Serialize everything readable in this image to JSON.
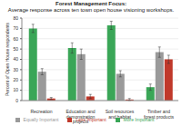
{
  "chart_data": {
    "type": "bar",
    "title": "Forest Management Focus:",
    "subtitle": "Average response across ten town open house visioning workshops.",
    "y_label": "Percent of Open House respondents",
    "categories": [
      "Recreation",
      "Education and demonstration projects",
      "Soil resources and habitat",
      "Timber and forest products"
    ],
    "series": [
      {
        "name": "More Important",
        "color": "#3aa657",
        "values": [
          70,
          51,
          73,
          13
        ],
        "errors": [
          4,
          5,
          4,
          3
        ]
      },
      {
        "name": "Equally Important",
        "color": "#9a9a9a",
        "values": [
          28,
          45,
          26,
          47
        ],
        "errors": [
          3,
          5,
          3,
          5
        ]
      },
      {
        "name": "Less Important",
        "color": "#c0392b",
        "values": [
          2,
          4,
          1,
          40
        ],
        "errors": [
          1,
          2,
          1,
          4
        ]
      }
    ],
    "ylim": [
      0,
      80
    ],
    "yticks": [
      0,
      10,
      20,
      30,
      40,
      50,
      60,
      70,
      80
    ],
    "grid": true,
    "legend": "bottom"
  }
}
